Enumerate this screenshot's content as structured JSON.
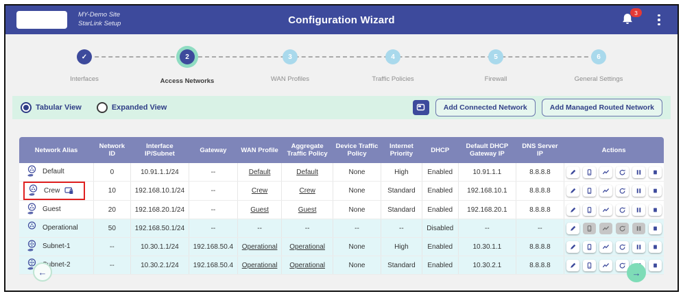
{
  "header": {
    "site_line1": "MY-Demo Site",
    "site_line2": "StarLink Setup",
    "title": "Configuration Wizard",
    "notification_count": "3"
  },
  "stepper": {
    "steps": [
      {
        "label": "Interfaces",
        "state": "done",
        "symbol": "✓"
      },
      {
        "label": "Access Networks",
        "state": "active",
        "symbol": "2"
      },
      {
        "label": "WAN Profiles",
        "state": "todo",
        "symbol": "3"
      },
      {
        "label": "Traffic Policies",
        "state": "todo",
        "symbol": "4"
      },
      {
        "label": "Firewall",
        "state": "todo",
        "symbol": "5"
      },
      {
        "label": "General Settings",
        "state": "todo",
        "symbol": "6"
      }
    ]
  },
  "toolbar": {
    "tabular_view_label": "Tabular View",
    "expanded_view_label": "Expanded View",
    "selected_view": "Tabular View",
    "add_connected_label": "Add Connected Network",
    "add_managed_label": "Add Managed Routed Network"
  },
  "table": {
    "columns": [
      "Network Alias",
      "Network ID",
      "Interface IP/Subnet",
      "Gateway",
      "WAN Profile",
      "Aggregate Traffic Policy",
      "Device Traffic Policy",
      "Internet Priority",
      "DHCP",
      "Default DHCP Gateway IP",
      "DNS Server IP",
      "Actions"
    ],
    "action_icons": [
      "edit",
      "devices",
      "chart",
      "refresh",
      "pause",
      "stop"
    ],
    "rows": [
      {
        "alias": "Default",
        "icon": "network-hand",
        "locked": false,
        "highlighted": false,
        "tint": false,
        "network_id": "0",
        "ip_subnet": "10.91.1.1/24",
        "gateway": "--",
        "wan_profile": "Default",
        "agg_policy": "Default",
        "device_policy": "None",
        "priority": "High",
        "dhcp": "Enabled",
        "dhcp_gw": "10.91.1.1",
        "dns": "8.8.8.8",
        "disabled_actions": []
      },
      {
        "alias": "Crew",
        "icon": "network-hand",
        "locked": true,
        "highlighted": true,
        "tint": false,
        "network_id": "10",
        "ip_subnet": "192.168.10.1/24",
        "gateway": "--",
        "wan_profile": "Crew",
        "agg_policy": "Crew",
        "device_policy": "None",
        "priority": "Standard",
        "dhcp": "Enabled",
        "dhcp_gw": "192.168.10.1",
        "dns": "8.8.8.8",
        "disabled_actions": []
      },
      {
        "alias": "Guest",
        "icon": "network-hand",
        "locked": false,
        "highlighted": false,
        "tint": false,
        "network_id": "20",
        "ip_subnet": "192.168.20.1/24",
        "gateway": "--",
        "wan_profile": "Guest",
        "agg_policy": "Guest",
        "device_policy": "None",
        "priority": "Standard",
        "dhcp": "Enabled",
        "dhcp_gw": "192.168.20.1",
        "dns": "8.8.8.8",
        "disabled_actions": []
      },
      {
        "alias": "Operational",
        "icon": "network",
        "locked": false,
        "highlighted": false,
        "tint": true,
        "network_id": "50",
        "ip_subnet": "192.168.50.1/24",
        "gateway": "--",
        "wan_profile": "--",
        "agg_policy": "--",
        "device_policy": "--",
        "priority": "--",
        "dhcp": "Disabled",
        "dhcp_gw": "--",
        "dns": "--",
        "disabled_actions": [
          "devices",
          "chart",
          "refresh",
          "pause"
        ]
      },
      {
        "alias": "Subnet-1",
        "icon": "subnet-hand",
        "locked": false,
        "highlighted": false,
        "tint": true,
        "network_id": "--",
        "ip_subnet": "10.30.1.1/24",
        "gateway": "192.168.50.4",
        "wan_profile": "Operational",
        "agg_policy": "Operational",
        "device_policy": "None",
        "priority": "High",
        "dhcp": "Enabled",
        "dhcp_gw": "10.30.1.1",
        "dns": "8.8.8.8",
        "disabled_actions": []
      },
      {
        "alias": "Subnet-2",
        "icon": "subnet-hand",
        "locked": false,
        "highlighted": false,
        "tint": true,
        "network_id": "--",
        "ip_subnet": "10.30.2.1/24",
        "gateway": "192.168.50.4",
        "wan_profile": "Operational",
        "agg_policy": "Operational",
        "device_policy": "None",
        "priority": "Standard",
        "dhcp": "Enabled",
        "dhcp_gw": "10.30.2.1",
        "dns": "8.8.8.8",
        "disabled_actions": []
      }
    ]
  },
  "nav": {
    "back_symbol": "←",
    "next_symbol": "→"
  },
  "colors": {
    "header_bg": "#3d4a9c",
    "accent_indigo": "#3d4a9c",
    "mint_bar": "#d9f2e6",
    "active_ring": "#8fdcc2",
    "todo_step": "#a9d9ec",
    "table_header": "#7e85b9",
    "tint_row": "#e2f6f8",
    "badge_red": "#e53935",
    "highlight_red": "#e02020",
    "next_green": "#7edcb7"
  }
}
